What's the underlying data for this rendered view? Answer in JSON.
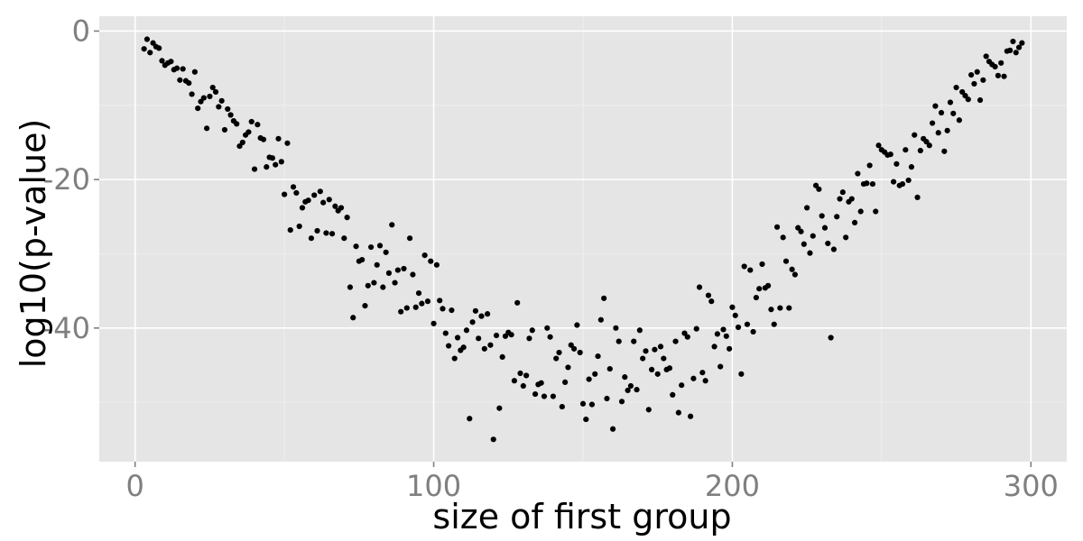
{
  "chart_data": {
    "type": "scatter",
    "title": "",
    "xlabel": "size of first group",
    "ylabel": "log10(p-value)",
    "xlim": [
      -12,
      312
    ],
    "ylim": [
      -58,
      2
    ],
    "x_ticks": [
      0,
      100,
      200,
      300
    ],
    "y_ticks": [
      0,
      -20,
      -40
    ],
    "x_tick_labels": [
      "0",
      "100",
      "200",
      "300"
    ],
    "y_tick_labels": [
      "0",
      "-20",
      "-40"
    ],
    "grid": true,
    "legend": "none",
    "point_color": "#000000",
    "panel_color": "#e5e5e5",
    "points": [
      [
        3,
        -2.4
      ],
      [
        4,
        -1.1
      ],
      [
        5,
        -2.9
      ],
      [
        6,
        -1.6
      ],
      [
        7,
        -2.1
      ],
      [
        8,
        -2.3
      ],
      [
        9,
        -4.0
      ],
      [
        10,
        -4.6
      ],
      [
        11,
        -4.3
      ],
      [
        12,
        -4.1
      ],
      [
        13,
        -5.2
      ],
      [
        14,
        -5.0
      ],
      [
        15,
        -6.6
      ],
      [
        16,
        -5.1
      ],
      [
        17,
        -6.7
      ],
      [
        18,
        -7.0
      ],
      [
        19,
        -8.5
      ],
      [
        20,
        -5.5
      ],
      [
        21,
        -10.4
      ],
      [
        22,
        -9.5
      ],
      [
        23,
        -9.0
      ],
      [
        24,
        -13.1
      ],
      [
        25,
        -8.8
      ],
      [
        26,
        -7.6
      ],
      [
        27,
        -8.2
      ],
      [
        28,
        -10.2
      ],
      [
        29,
        -9.4
      ],
      [
        30,
        -13.3
      ],
      [
        31,
        -10.5
      ],
      [
        32,
        -11.3
      ],
      [
        33,
        -12.1
      ],
      [
        34,
        -12.5
      ],
      [
        35,
        -15.5
      ],
      [
        36,
        -15.0
      ],
      [
        37,
        -14.0
      ],
      [
        38,
        -13.6
      ],
      [
        39,
        -12.2
      ],
      [
        40,
        -18.6
      ],
      [
        41,
        -12.6
      ],
      [
        42,
        -14.4
      ],
      [
        43,
        -14.6
      ],
      [
        44,
        -18.3
      ],
      [
        45,
        -17.0
      ],
      [
        46,
        -17.1
      ],
      [
        47,
        -18.0
      ],
      [
        48,
        -14.5
      ],
      [
        49,
        -17.6
      ],
      [
        50,
        -22.0
      ],
      [
        51,
        -15.1
      ],
      [
        52,
        -26.8
      ],
      [
        53,
        -21.0
      ],
      [
        54,
        -21.8
      ],
      [
        55,
        -26.3
      ],
      [
        56,
        -23.8
      ],
      [
        57,
        -23.0
      ],
      [
        58,
        -22.8
      ],
      [
        59,
        -27.9
      ],
      [
        60,
        -22.1
      ],
      [
        61,
        -26.9
      ],
      [
        62,
        -21.6
      ],
      [
        63,
        -23.1
      ],
      [
        64,
        -27.2
      ],
      [
        65,
        -22.7
      ],
      [
        66,
        -27.3
      ],
      [
        67,
        -23.6
      ],
      [
        68,
        -24.2
      ],
      [
        69,
        -23.8
      ],
      [
        70,
        -27.9
      ],
      [
        71,
        -25.1
      ],
      [
        72,
        -34.5
      ],
      [
        73,
        -38.6
      ],
      [
        74,
        -29.0
      ],
      [
        75,
        -31.0
      ],
      [
        76,
        -30.8
      ],
      [
        77,
        -37.0
      ],
      [
        78,
        -34.3
      ],
      [
        79,
        -29.1
      ],
      [
        80,
        -33.9
      ],
      [
        81,
        -31.5
      ],
      [
        82,
        -28.9
      ],
      [
        83,
        -34.5
      ],
      [
        84,
        -29.8
      ],
      [
        85,
        -32.6
      ],
      [
        86,
        -26.1
      ],
      [
        87,
        -33.9
      ],
      [
        88,
        -32.2
      ],
      [
        89,
        -37.8
      ],
      [
        90,
        -32.0
      ],
      [
        91,
        -37.3
      ],
      [
        92,
        -27.9
      ],
      [
        93,
        -32.8
      ],
      [
        94,
        -37.2
      ],
      [
        95,
        -35.3
      ],
      [
        96,
        -36.7
      ],
      [
        97,
        -30.2
      ],
      [
        98,
        -36.4
      ],
      [
        99,
        -31.0
      ],
      [
        100,
        -39.4
      ],
      [
        101,
        -31.5
      ],
      [
        102,
        -36.3
      ],
      [
        103,
        -37.4
      ],
      [
        104,
        -40.7
      ],
      [
        105,
        -42.4
      ],
      [
        106,
        -37.6
      ],
      [
        107,
        -44.1
      ],
      [
        108,
        -41.3
      ],
      [
        109,
        -43.0
      ],
      [
        110,
        -42.6
      ],
      [
        111,
        -40.3
      ],
      [
        112,
        -52.2
      ],
      [
        113,
        -39.2
      ],
      [
        114,
        -37.7
      ],
      [
        115,
        -41.4
      ],
      [
        116,
        -38.4
      ],
      [
        117,
        -42.8
      ],
      [
        118,
        -38.1
      ],
      [
        119,
        -42.3
      ],
      [
        120,
        -55.0
      ],
      [
        121,
        -41.0
      ],
      [
        122,
        -50.8
      ],
      [
        123,
        -43.9
      ],
      [
        124,
        -41.1
      ],
      [
        125,
        -40.6
      ],
      [
        126,
        -40.9
      ],
      [
        127,
        -47.1
      ],
      [
        128,
        -36.6
      ],
      [
        129,
        -46.1
      ],
      [
        130,
        -47.8
      ],
      [
        131,
        -46.4
      ],
      [
        132,
        -41.4
      ],
      [
        133,
        -40.3
      ],
      [
        134,
        -48.9
      ],
      [
        135,
        -47.6
      ],
      [
        136,
        -47.4
      ],
      [
        137,
        -49.2
      ],
      [
        138,
        -40.0
      ],
      [
        139,
        -41.2
      ],
      [
        140,
        -49.2
      ],
      [
        141,
        -44.1
      ],
      [
        142,
        -43.3
      ],
      [
        143,
        -50.6
      ],
      [
        144,
        -47.3
      ],
      [
        145,
        -45.3
      ],
      [
        146,
        -42.3
      ],
      [
        147,
        -42.8
      ],
      [
        148,
        -39.6
      ],
      [
        149,
        -43.3
      ],
      [
        150,
        -50.2
      ],
      [
        151,
        -52.3
      ],
      [
        152,
        -46.9
      ],
      [
        153,
        -50.3
      ],
      [
        154,
        -46.2
      ],
      [
        155,
        -43.8
      ],
      [
        156,
        -38.9
      ],
      [
        157,
        -36.0
      ],
      [
        158,
        -49.5
      ],
      [
        159,
        -45.5
      ],
      [
        160,
        -53.6
      ],
      [
        161,
        -40.0
      ],
      [
        162,
        -41.8
      ],
      [
        163,
        -49.9
      ],
      [
        164,
        -46.6
      ],
      [
        165,
        -48.4
      ],
      [
        166,
        -47.8
      ],
      [
        167,
        -41.8
      ],
      [
        168,
        -48.3
      ],
      [
        169,
        -40.3
      ],
      [
        170,
        -44.1
      ],
      [
        171,
        -43.1
      ],
      [
        172,
        -51.0
      ],
      [
        173,
        -45.6
      ],
      [
        174,
        -42.9
      ],
      [
        175,
        -46.2
      ],
      [
        176,
        -42.5
      ],
      [
        177,
        -44.1
      ],
      [
        178,
        -45.6
      ],
      [
        179,
        -45.4
      ],
      [
        180,
        -49.0
      ],
      [
        181,
        -41.8
      ],
      [
        182,
        -51.4
      ],
      [
        183,
        -47.7
      ],
      [
        184,
        -40.7
      ],
      [
        185,
        -41.2
      ],
      [
        186,
        -51.9
      ],
      [
        187,
        -46.8
      ],
      [
        188,
        -40.1
      ],
      [
        189,
        -34.5
      ],
      [
        190,
        -46.0
      ],
      [
        191,
        -47.1
      ],
      [
        192,
        -35.6
      ],
      [
        193,
        -36.4
      ],
      [
        194,
        -42.5
      ],
      [
        195,
        -40.8
      ],
      [
        196,
        -45.2
      ],
      [
        197,
        -40.2
      ],
      [
        198,
        -41.1
      ],
      [
        199,
        -42.8
      ],
      [
        200,
        -37.2
      ],
      [
        201,
        -38.3
      ],
      [
        202,
        -39.9
      ],
      [
        203,
        -46.2
      ],
      [
        204,
        -31.7
      ],
      [
        205,
        -39.5
      ],
      [
        206,
        -32.2
      ],
      [
        207,
        -40.5
      ],
      [
        208,
        -35.9
      ],
      [
        209,
        -34.7
      ],
      [
        210,
        -31.4
      ],
      [
        211,
        -34.6
      ],
      [
        212,
        -34.3
      ],
      [
        213,
        -37.5
      ],
      [
        214,
        -39.5
      ],
      [
        215,
        -26.4
      ],
      [
        216,
        -37.3
      ],
      [
        217,
        -27.8
      ],
      [
        218,
        -31.0
      ],
      [
        219,
        -37.3
      ],
      [
        220,
        -32.1
      ],
      [
        221,
        -32.8
      ],
      [
        222,
        -26.5
      ],
      [
        223,
        -27.0
      ],
      [
        224,
        -28.7
      ],
      [
        225,
        -23.8
      ],
      [
        226,
        -29.9
      ],
      [
        227,
        -27.6
      ],
      [
        228,
        -20.8
      ],
      [
        229,
        -21.3
      ],
      [
        230,
        -24.9
      ],
      [
        231,
        -26.5
      ],
      [
        232,
        -28.6
      ],
      [
        233,
        -41.3
      ],
      [
        234,
        -29.4
      ],
      [
        235,
        -25.0
      ],
      [
        236,
        -22.6
      ],
      [
        237,
        -21.7
      ],
      [
        238,
        -27.8
      ],
      [
        239,
        -23.0
      ],
      [
        240,
        -22.6
      ],
      [
        241,
        -25.8
      ],
      [
        242,
        -19.2
      ],
      [
        243,
        -24.3
      ],
      [
        244,
        -20.6
      ],
      [
        245,
        -20.5
      ],
      [
        246,
        -18.1
      ],
      [
        247,
        -20.6
      ],
      [
        248,
        -24.3
      ],
      [
        249,
        -15.4
      ],
      [
        250,
        -16.0
      ],
      [
        251,
        -16.3
      ],
      [
        252,
        -16.7
      ],
      [
        253,
        -16.6
      ],
      [
        254,
        -20.3
      ],
      [
        255,
        -17.9
      ],
      [
        256,
        -20.8
      ],
      [
        257,
        -20.6
      ],
      [
        258,
        -16.0
      ],
      [
        259,
        -20.1
      ],
      [
        260,
        -18.3
      ],
      [
        261,
        -14.0
      ],
      [
        262,
        -22.4
      ],
      [
        263,
        -16.1
      ],
      [
        264,
        -14.5
      ],
      [
        265,
        -14.9
      ],
      [
        266,
        -15.4
      ],
      [
        267,
        -12.4
      ],
      [
        268,
        -10.1
      ],
      [
        269,
        -13.7
      ],
      [
        270,
        -11.0
      ],
      [
        271,
        -16.2
      ],
      [
        272,
        -13.4
      ],
      [
        273,
        -9.6
      ],
      [
        274,
        -11.1
      ],
      [
        275,
        -7.6
      ],
      [
        276,
        -12.0
      ],
      [
        277,
        -8.2
      ],
      [
        278,
        -8.7
      ],
      [
        279,
        -9.2
      ],
      [
        280,
        -5.9
      ],
      [
        281,
        -7.1
      ],
      [
        282,
        -5.5
      ],
      [
        283,
        -9.3
      ],
      [
        284,
        -6.6
      ],
      [
        285,
        -3.4
      ],
      [
        286,
        -4.1
      ],
      [
        287,
        -4.5
      ],
      [
        288,
        -4.8
      ],
      [
        289,
        -6.0
      ],
      [
        290,
        -4.3
      ],
      [
        291,
        -6.1
      ],
      [
        292,
        -2.7
      ],
      [
        293,
        -2.6
      ],
      [
        294,
        -1.4
      ],
      [
        295,
        -2.9
      ],
      [
        296,
        -2.2
      ],
      [
        297,
        -1.6
      ]
    ]
  }
}
